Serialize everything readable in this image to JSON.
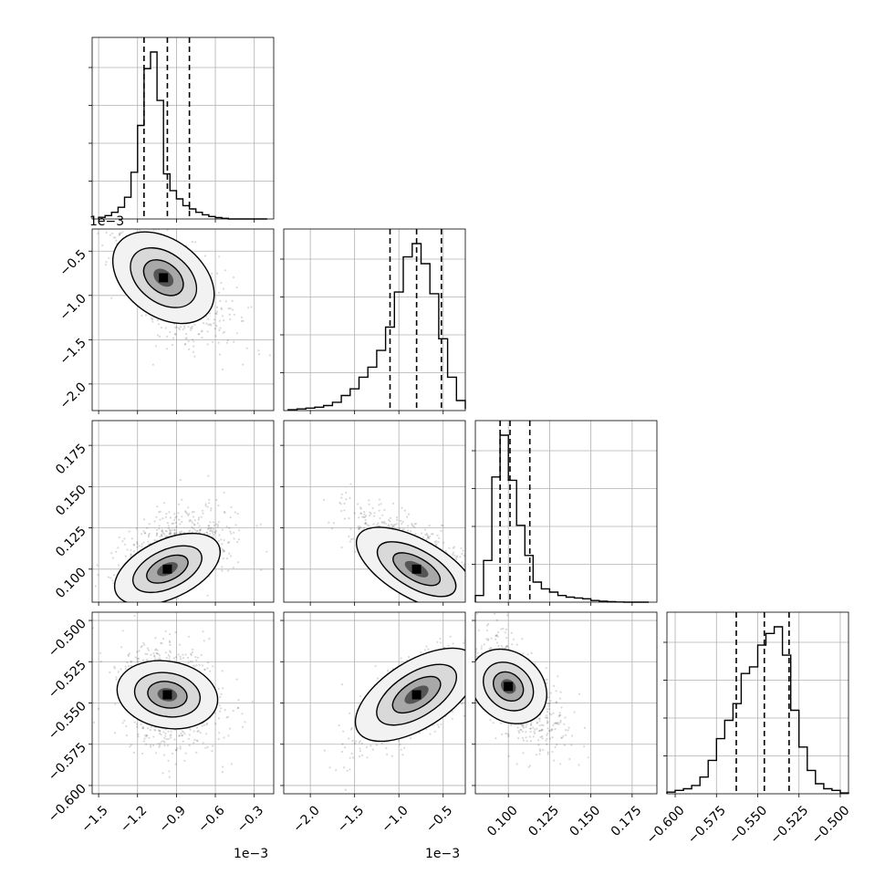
{
  "chart_data": {
    "type": "scatter",
    "subtype": "corner-plot",
    "n_params": 4,
    "grid": true,
    "scatter_color": "#000000",
    "line_color": "#000000",
    "histograms": [
      {
        "param": 0,
        "edges": [
          -1.5,
          -1.45,
          -1.4,
          -1.35,
          -1.3,
          -1.25,
          -1.2,
          -1.15,
          -1.1,
          -1.05,
          -1.0,
          -0.95,
          -0.9,
          -0.85,
          -0.8,
          -0.75,
          -0.7,
          -0.65,
          -0.6,
          -0.55,
          -0.5,
          -0.45,
          -0.4,
          -0.35,
          -0.3,
          -0.25,
          -0.2
        ],
        "counts": [
          0.01,
          0.02,
          0.04,
          0.07,
          0.13,
          0.28,
          0.56,
          0.9,
          1.0,
          0.71,
          0.27,
          0.17,
          0.12,
          0.08,
          0.06,
          0.04,
          0.025,
          0.015,
          0.008,
          0.004,
          0,
          0,
          0,
          0,
          0,
          0
        ],
        "quantiles": [
          -1.15,
          -0.97,
          -0.8
        ]
      },
      {
        "param": 1,
        "edges": [
          -2.25,
          -2.15,
          -2.05,
          -1.95,
          -1.85,
          -1.75,
          -1.65,
          -1.55,
          -1.45,
          -1.35,
          -1.25,
          -1.15,
          -1.05,
          -0.95,
          -0.85,
          -0.75,
          -0.65,
          -0.55,
          -0.45,
          -0.35,
          -0.25
        ],
        "counts": [
          0.005,
          0.01,
          0.015,
          0.02,
          0.03,
          0.05,
          0.09,
          0.13,
          0.2,
          0.26,
          0.36,
          0.5,
          0.71,
          0.92,
          1.0,
          0.88,
          0.7,
          0.43,
          0.2,
          0.06,
          0.01
        ],
        "quantiles": [
          -1.1,
          -0.8,
          -0.52
        ]
      },
      {
        "param": 2,
        "edges": [
          0.08,
          0.085,
          0.09,
          0.095,
          0.1,
          0.105,
          0.11,
          0.115,
          0.12,
          0.125,
          0.13,
          0.135,
          0.14,
          0.145,
          0.15,
          0.155,
          0.16,
          0.165,
          0.17,
          0.175,
          0.18,
          0.185
        ],
        "counts": [
          0.04,
          0.25,
          0.75,
          1.0,
          0.73,
          0.46,
          0.28,
          0.12,
          0.08,
          0.06,
          0.04,
          0.03,
          0.025,
          0.02,
          0.01,
          0.006,
          0.003,
          0.001,
          0,
          0,
          0
        ],
        "quantiles": [
          0.095,
          0.101,
          0.113
        ]
      },
      {
        "param": 3,
        "edges": [
          -0.605,
          -0.6,
          -0.595,
          -0.59,
          -0.585,
          -0.58,
          -0.575,
          -0.57,
          -0.565,
          -0.56,
          -0.555,
          -0.55,
          -0.545,
          -0.54,
          -0.535,
          -0.53,
          -0.525,
          -0.52,
          -0.515,
          -0.51,
          -0.505,
          -0.5,
          -0.495
        ],
        "counts": [
          0.01,
          0.02,
          0.03,
          0.05,
          0.1,
          0.2,
          0.33,
          0.44,
          0.54,
          0.72,
          0.76,
          0.89,
          0.96,
          1.0,
          0.83,
          0.5,
          0.28,
          0.14,
          0.06,
          0.03,
          0.02,
          0.005
        ],
        "quantiles": [
          -0.563,
          -0.546,
          -0.531
        ]
      }
    ],
    "pairs": [
      {
        "x_param": 0,
        "y_param": 1,
        "mean": [
          -0.97,
          -0.83
        ],
        "sd": [
          0.19,
          0.34
        ],
        "corr": -0.62,
        "mode": [
          -1.0,
          -0.8
        ]
      },
      {
        "x_param": 0,
        "y_param": 2,
        "mean": [
          -0.94,
          0.108
        ],
        "sd": [
          0.19,
          0.014
        ],
        "corr": 0.5,
        "mode": [
          -0.97,
          0.1
        ]
      },
      {
        "x_param": 1,
        "y_param": 2,
        "mean": [
          -0.85,
          0.108
        ],
        "sd": [
          0.33,
          0.014
        ],
        "corr": -0.72,
        "mode": [
          -0.8,
          0.1
        ]
      },
      {
        "x_param": 0,
        "y_param": 3,
        "mean": [
          -0.97,
          -0.546
        ],
        "sd": [
          0.17,
          0.016
        ],
        "corr": -0.15,
        "mode": [
          -0.97,
          -0.545
        ]
      },
      {
        "x_param": 1,
        "y_param": 3,
        "mean": [
          -0.84,
          -0.547
        ],
        "sd": [
          0.34,
          0.016
        ],
        "corr": 0.72,
        "mode": [
          -0.8,
          -0.545
        ]
      },
      {
        "x_param": 2,
        "y_param": 3,
        "mean": [
          0.104,
          -0.543
        ],
        "sd": [
          0.011,
          0.016
        ],
        "corr": -0.6,
        "mode": [
          0.1,
          -0.54
        ]
      }
    ],
    "axes": [
      {
        "param": 0,
        "lim": [
          -1.55,
          -0.15
        ],
        "ticks": [
          -1.5,
          -1.2,
          -0.9,
          -0.6,
          -0.3
        ],
        "tick_labels": [
          "−1.5",
          "−1.2",
          "−0.9",
          "−0.6",
          "−0.3"
        ],
        "offset_label": "1e−3"
      },
      {
        "param": 1,
        "lim": [
          -2.3,
          -0.25
        ],
        "ticks": [
          -2.0,
          -1.5,
          -1.0,
          -0.5
        ],
        "tick_labels": [
          "−2.0",
          "−1.5",
          "−1.0",
          "−0.5"
        ],
        "offset_label": "1e−3"
      },
      {
        "param": 2,
        "lim": [
          0.08,
          0.19
        ],
        "ticks": [
          0.1,
          0.125,
          0.15,
          0.175
        ],
        "tick_labels": [
          "0.100",
          "0.125",
          "0.150",
          "0.175"
        ],
        "offset_label": ""
      },
      {
        "param": 3,
        "lim": [
          -0.605,
          -0.495
        ],
        "ticks": [
          -0.6,
          -0.575,
          -0.55,
          -0.525,
          -0.5
        ],
        "tick_labels": [
          "−0.600",
          "−0.575",
          "−0.550",
          "−0.525",
          "−0.500"
        ],
        "offset_label": ""
      }
    ]
  }
}
